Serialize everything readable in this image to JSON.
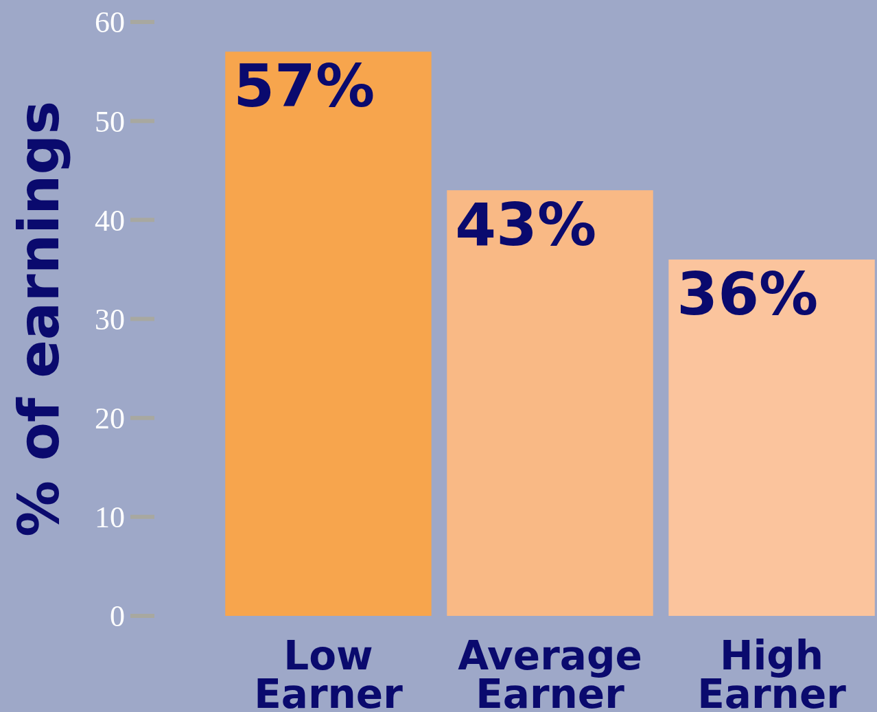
{
  "chart_data": {
    "type": "bar",
    "ylabel": "% of earnings",
    "categories": [
      "Low Earner",
      "Average Earner",
      "High Earner"
    ],
    "values": [
      57,
      43,
      36
    ],
    "colors": [
      "#f7a54d",
      "#f9b985",
      "#fbc49d"
    ],
    "value_labels": [
      "57%",
      "43%",
      "36%"
    ],
    "ylim": [
      0,
      60
    ],
    "yticks": [
      0,
      10,
      20,
      30,
      40,
      50,
      60
    ]
  }
}
